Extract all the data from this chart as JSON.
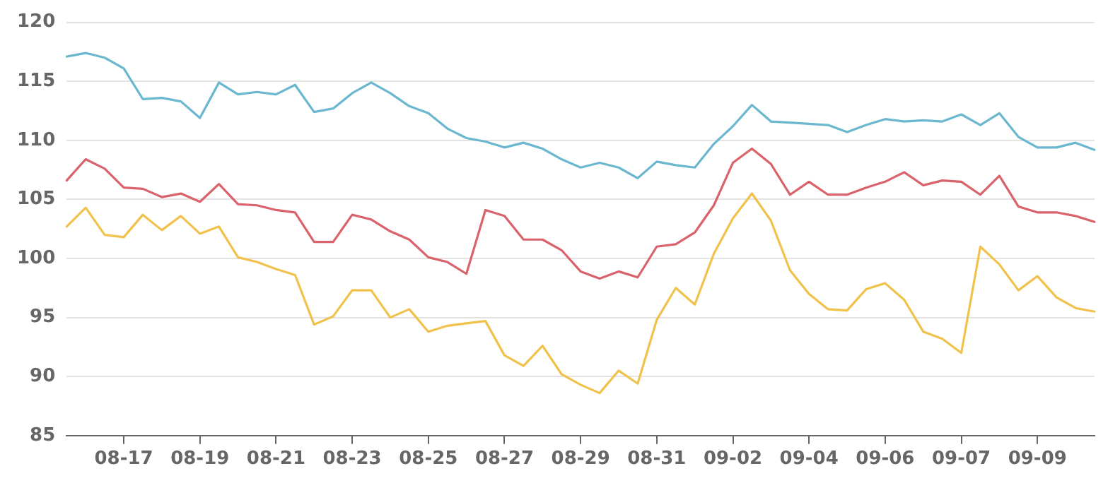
{
  "chart_data": {
    "type": "line",
    "ylim": [
      85,
      120
    ],
    "yticks": [
      85,
      90,
      95,
      100,
      105,
      110,
      115,
      120
    ],
    "categories": [
      null,
      null,
      null,
      "08-17",
      null,
      null,
      null,
      "08-19",
      null,
      null,
      null,
      "08-21",
      null,
      null,
      null,
      "08-23",
      null,
      null,
      null,
      "08-25",
      null,
      null,
      null,
      "08-27",
      null,
      null,
      null,
      "08-29",
      null,
      null,
      null,
      "08-31",
      null,
      null,
      null,
      "09-02",
      null,
      null,
      null,
      "09-04",
      null,
      null,
      null,
      "09-06",
      null,
      null,
      null,
      "09-07",
      null,
      null,
      null,
      "09-09",
      null,
      null,
      null
    ],
    "grid": "y",
    "marker": "none",
    "line_style": "solid",
    "legend": false,
    "series": [
      {
        "color": "#6ab7cf",
        "values": [
          117.1,
          117.4,
          117,
          116.1,
          113.5,
          113.6,
          113.3,
          111.9,
          114.9,
          113.9,
          114.1,
          113.9,
          114.7,
          112.4,
          112.7,
          114,
          114.9,
          114,
          112.9,
          112.3,
          111,
          110.2,
          109.9,
          109.4,
          109.8,
          109.3,
          108.4,
          107.7,
          108.1,
          107.7,
          106.8,
          108.2,
          107.9,
          107.7,
          109.7,
          111.2,
          113,
          111.6,
          111.5,
          111.4,
          111.3,
          110.7,
          111.3,
          111.8,
          111.6,
          111.7,
          111.6,
          112.2,
          111.3,
          112.3,
          110.3,
          109.4,
          109.4,
          109.8,
          109.2
        ]
      },
      {
        "color": "#d9626b",
        "values": [
          106.6,
          108.4,
          107.6,
          106,
          105.9,
          105.2,
          105.5,
          104.8,
          106.3,
          104.6,
          104.5,
          104.1,
          103.9,
          101.4,
          101.4,
          103.7,
          103.3,
          102.3,
          101.6,
          100.1,
          99.7,
          98.7,
          104.1,
          103.6,
          101.6,
          101.6,
          100.7,
          98.9,
          98.3,
          98.9,
          98.4,
          101,
          101.2,
          102.2,
          104.5,
          108.1,
          109.3,
          108,
          105.4,
          106.5,
          105.4,
          105.4,
          106,
          106.5,
          107.3,
          106.2,
          106.6,
          106.5,
          105.4,
          107,
          104.4,
          103.9,
          103.9,
          103.6,
          103.1
        ]
      },
      {
        "color": "#f0c24b",
        "values": [
          102.7,
          104.3,
          102,
          101.8,
          103.7,
          102.4,
          103.6,
          102.1,
          102.7,
          100.1,
          99.7,
          99.1,
          98.6,
          94.4,
          95.1,
          97.3,
          97.3,
          95,
          95.7,
          93.8,
          94.3,
          94.5,
          94.7,
          91.8,
          90.9,
          92.6,
          90.2,
          89.3,
          88.6,
          90.5,
          89.4,
          94.8,
          97.5,
          96.1,
          100.4,
          103.4,
          105.5,
          103.2,
          99,
          97,
          95.7,
          95.6,
          97.4,
          97.9,
          96.5,
          93.8,
          93.2,
          92,
          101,
          99.5,
          97.3,
          98.5,
          96.7,
          95.8,
          95.5
        ]
      }
    ]
  }
}
